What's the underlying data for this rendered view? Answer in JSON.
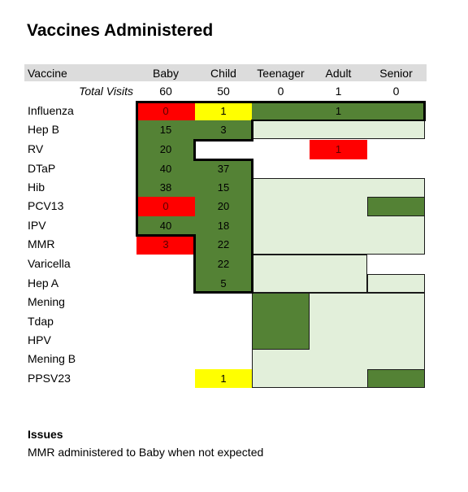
{
  "title": "Vaccines Administered",
  "columns": [
    "Vaccine",
    "Baby",
    "Child",
    "Teenager",
    "Adult",
    "Senior"
  ],
  "total_visits": {
    "label": "Total Visits",
    "values": [
      "60",
      "50",
      "0",
      "1",
      "0"
    ]
  },
  "rows": [
    {
      "name": "Influenza",
      "baby": "0",
      "child": "1",
      "adult": "1"
    },
    {
      "name": "Hep B",
      "baby": "15",
      "child": "3"
    },
    {
      "name": "RV",
      "baby": "20",
      "adult": "1"
    },
    {
      "name": "DTaP",
      "baby": "40",
      "child": "37"
    },
    {
      "name": "Hib",
      "baby": "38",
      "child": "15"
    },
    {
      "name": "PCV13",
      "baby": "0",
      "child": "20"
    },
    {
      "name": "IPV",
      "baby": "40",
      "child": "18"
    },
    {
      "name": "MMR",
      "baby": "3",
      "child": "22"
    },
    {
      "name": "Varicella",
      "child": "22"
    },
    {
      "name": "Hep A",
      "child": "5"
    },
    {
      "name": "Mening"
    },
    {
      "name": "Tdap"
    },
    {
      "name": "HPV"
    },
    {
      "name": "Mening B"
    },
    {
      "name": "PPSV23",
      "child": "1"
    }
  ],
  "colors": {
    "expected": "#548235",
    "not_applicable": "#e2efda",
    "alert": "#ff0000",
    "warning": "#ffff00",
    "header": "#dcdcdc"
  },
  "issues": {
    "heading": "Issues",
    "text": "MMR administered to Baby when not expected"
  }
}
